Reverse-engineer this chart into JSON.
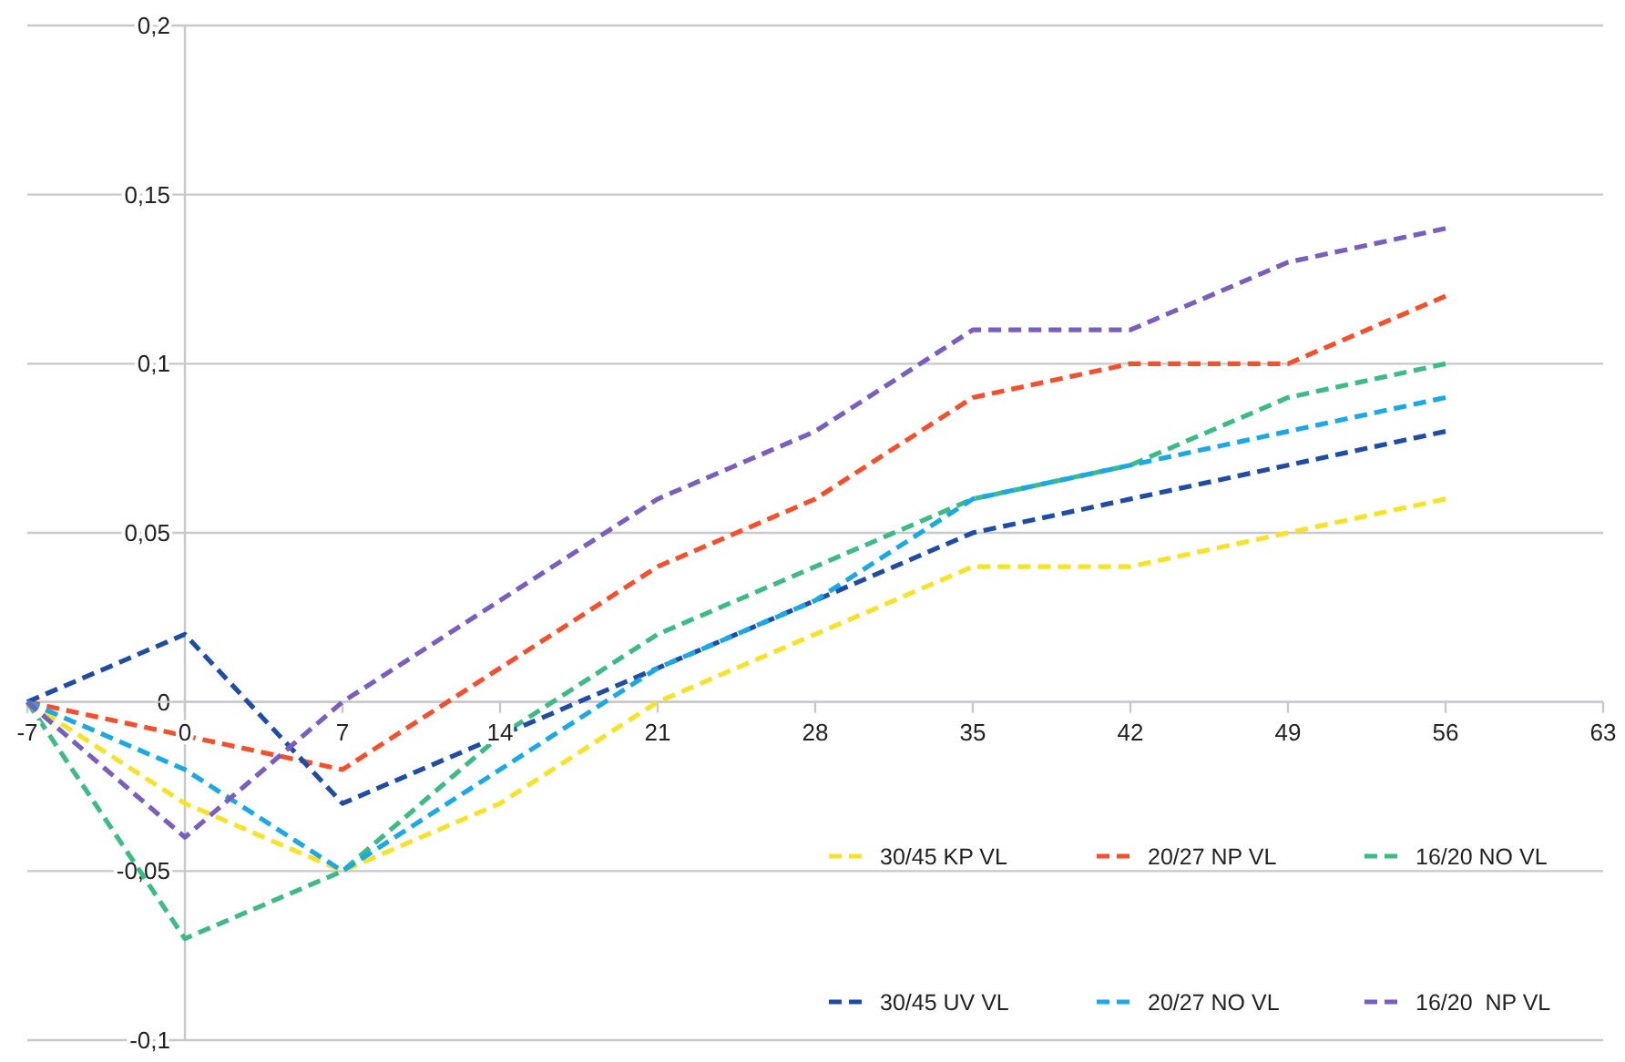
{
  "chart_data": {
    "type": "line",
    "x": [
      -7,
      0,
      7,
      14,
      21,
      28,
      35,
      42,
      49,
      56
    ],
    "xlim": [
      -7,
      63
    ],
    "xticks": [
      -7,
      0,
      7,
      14,
      21,
      28,
      35,
      42,
      49,
      56,
      63
    ],
    "ylim": [
      -0.1,
      0.2
    ],
    "yticks": [
      {
        "value": -0.1,
        "label": "-0,1"
      },
      {
        "value": -0.05,
        "label": "-0,05"
      },
      0,
      {
        "value": 0.05,
        "label": "0,05"
      },
      {
        "value": 0.1,
        "label": "0,1"
      },
      {
        "value": 0.15,
        "label": "0,15"
      },
      {
        "value": 0.2,
        "label": "0,2"
      }
    ],
    "grid": "y",
    "legend": "bottom right",
    "line_style": "dashed",
    "marker": "none",
    "series": [
      {
        "name": "30/45 KP VL",
        "color": "#f7e227",
        "values": [
          0,
          -0.03,
          -0.05,
          -0.03,
          0,
          0.02,
          0.04,
          0.04,
          0.05,
          0.06
        ]
      },
      {
        "name": "20/27 NP VL",
        "color": "#f4502d",
        "values": [
          0,
          -0.01,
          -0.02,
          0.01,
          0.04,
          0.06,
          0.09,
          0.1,
          0.1,
          0.12
        ]
      },
      {
        "name": "16/20 NO VL",
        "color": "#3cbb86",
        "values": [
          0,
          -0.07,
          -0.05,
          -0.01,
          0.02,
          0.04,
          0.06,
          0.07,
          0.09,
          0.1
        ]
      },
      {
        "name": "30/45 UV VL",
        "color": "#1f4da6",
        "values": [
          0,
          0.02,
          -0.03,
          -0.01,
          0.01,
          0.03,
          0.05,
          0.06,
          0.07,
          0.08
        ]
      },
      {
        "name": "20/27 NO VL",
        "color": "#1aa9e6",
        "values": [
          0,
          -0.02,
          -0.05,
          -0.02,
          0.01,
          0.03,
          0.06,
          0.07,
          0.08,
          0.09
        ]
      },
      {
        "name": "16/20  NP VL",
        "color": "#7a5ebd",
        "values": [
          0,
          -0.04,
          0,
          0.03,
          0.06,
          0.08,
          0.11,
          0.11,
          0.13,
          0.14
        ]
      }
    ]
  }
}
